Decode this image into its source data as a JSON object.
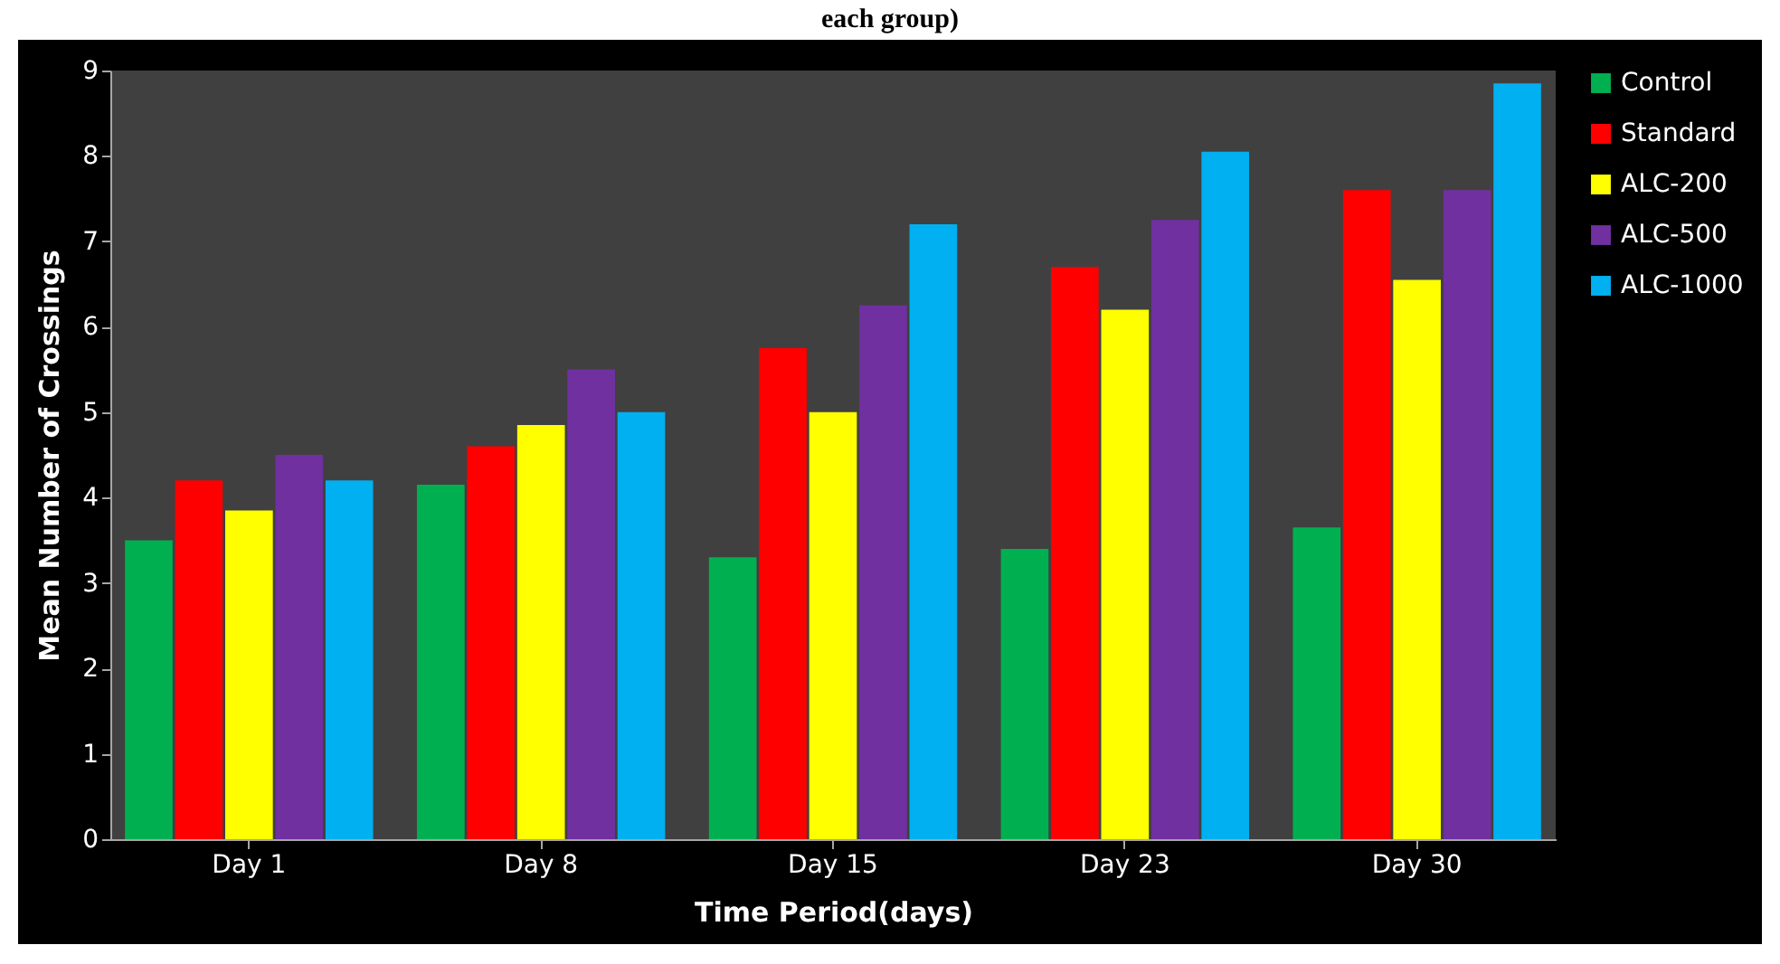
{
  "chart_data": {
    "type": "bar",
    "title": "each group)",
    "xlabel": "Time Period(days)",
    "ylabel": "Mean Number of Crossings",
    "categories": [
      "Day 1",
      "Day 8",
      "Day 15",
      "Day 23",
      "Day 30"
    ],
    "series": [
      {
        "name": "Control",
        "color": "#00b050",
        "values": [
          3.5,
          4.15,
          3.3,
          3.4,
          3.65
        ]
      },
      {
        "name": "Standard",
        "color": "#ff0000",
        "values": [
          4.2,
          4.6,
          5.75,
          6.7,
          7.6
        ]
      },
      {
        "name": "ALC-200",
        "color": "#ffff00",
        "values": [
          3.85,
          4.85,
          5.0,
          6.2,
          6.55
        ]
      },
      {
        "name": "ALC-500",
        "color": "#7030a0",
        "values": [
          4.5,
          5.5,
          6.25,
          7.25,
          7.6
        ]
      },
      {
        "name": "ALC-1000",
        "color": "#00b0f0",
        "values": [
          4.2,
          5.0,
          7.2,
          8.05,
          8.85
        ]
      }
    ],
    "ylim": [
      0,
      9
    ],
    "yticks": [
      0,
      1,
      2,
      3,
      4,
      5,
      6,
      7,
      8,
      9
    ],
    "grid": false,
    "legend": "right"
  }
}
